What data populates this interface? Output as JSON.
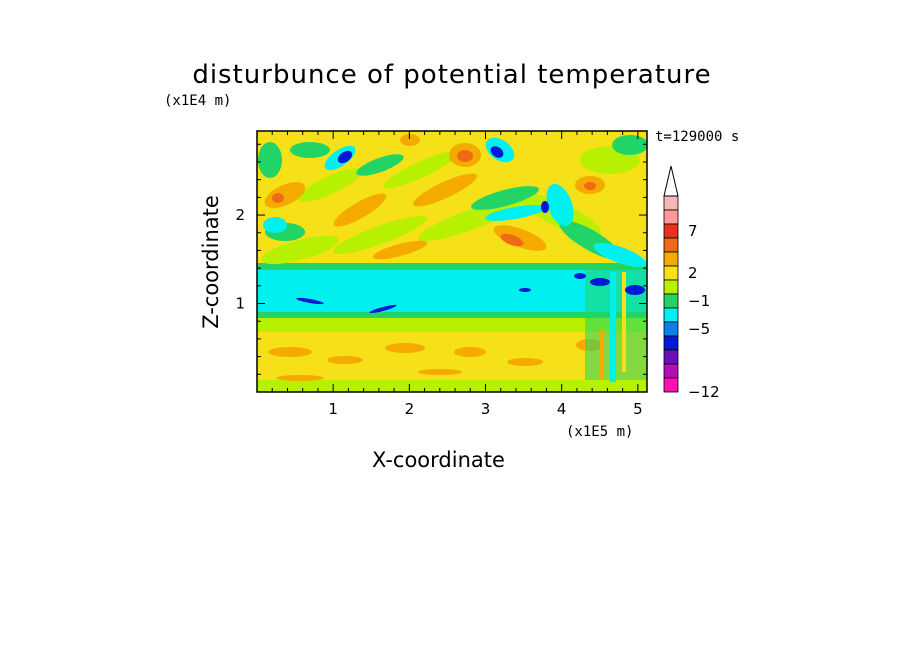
{
  "chart_data": {
    "type": "heatmap",
    "title": "disturbunce of potential temperature",
    "xlabel": "X-coordinate",
    "ylabel": "Z-coordinate",
    "x_unit": "(x1E5 m)",
    "y_unit": "(x1E4 m)",
    "annotation": "t=129000 s",
    "xlim": [
      0,
      5.12
    ],
    "ylim": [
      0,
      2.95
    ],
    "x_ticks": [
      "1",
      "2",
      "3",
      "4",
      "5"
    ],
    "y_ticks": [
      "1",
      "2"
    ],
    "colorbar": {
      "levels": [
        -12,
        -5,
        -1,
        2,
        7
      ],
      "tick_labels": [
        "7",
        "2",
        "−1",
        "−5",
        "−12"
      ],
      "colors_top_to_bottom": [
        "#f4b8b8",
        "#ff9a9a",
        "#e83020",
        "#f06a16",
        "#f5aa00",
        "#f6e018",
        "#b7f000",
        "#22d466",
        "#00f0f0",
        "#0c80e6",
        "#0018d8",
        "#6a10b8",
        "#b80cb8",
        "#ff10b0"
      ],
      "extend_top": true
    },
    "bands": [
      {
        "z_range": [
          0.0,
          0.12
        ],
        "value_class": "weak positive (yellow/green)"
      },
      {
        "z_range": [
          0.12,
          0.65
        ],
        "value_class": "weak positive (yellow/orange)"
      },
      {
        "z_range": [
          0.65,
          0.85
        ],
        "value_class": "near zero (green)"
      },
      {
        "z_range": [
          0.85,
          1.35
        ],
        "value_class": "negative (cyan, blue cores)"
      },
      {
        "z_range": [
          1.35,
          2.95
        ],
        "value_class": "wave pattern (orange/yellow/green/cyan/blue)"
      }
    ]
  }
}
